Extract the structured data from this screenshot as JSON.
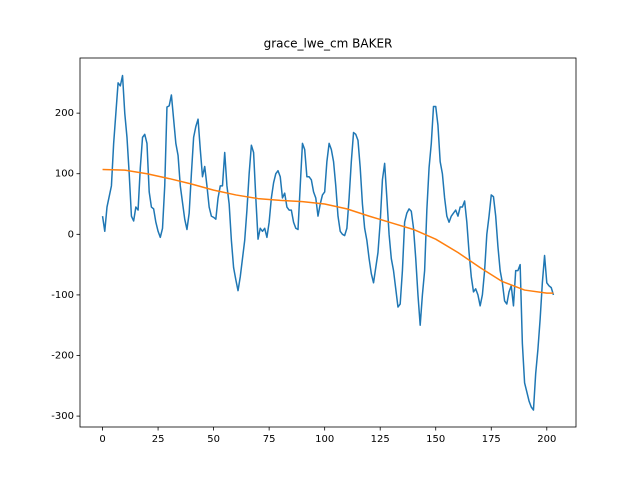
{
  "chart_data": {
    "type": "line",
    "title": "grace_lwe_cm BAKER",
    "xlim": [
      -10.15,
      213.15
    ],
    "ylim": [
      -318,
      291
    ],
    "xticks": [
      0,
      25,
      50,
      75,
      100,
      125,
      150,
      175,
      200
    ],
    "yticks": [
      -300,
      -200,
      -100,
      0,
      100,
      200
    ],
    "series": [
      {
        "color": "#1f77b4",
        "x": [
          0,
          1,
          2,
          4,
          5,
          7,
          8,
          9,
          10,
          11,
          12,
          13,
          14,
          15,
          16,
          17,
          18,
          19,
          20,
          21,
          22,
          23,
          24,
          25,
          26,
          27,
          28,
          29,
          30,
          31,
          32,
          33,
          34,
          35,
          37,
          38,
          39,
          40,
          41,
          42,
          43,
          44,
          45,
          46,
          47,
          48,
          49,
          50,
          51,
          52,
          53,
          54,
          55,
          56,
          57,
          58,
          59,
          60,
          61,
          62,
          64,
          65,
          66,
          67,
          68,
          69,
          70,
          71,
          72,
          73,
          74,
          75,
          76,
          77,
          78,
          79,
          80,
          81,
          82,
          83,
          84,
          85,
          86,
          87,
          88,
          89,
          90,
          91,
          92,
          93,
          94,
          95,
          96,
          97,
          98,
          99,
          100,
          101,
          102,
          103,
          104,
          105,
          106,
          107,
          108,
          109,
          110,
          111,
          112,
          113,
          114,
          115,
          116,
          117,
          118,
          119,
          120,
          121,
          122,
          123,
          124,
          125,
          126,
          127,
          128,
          129,
          130,
          131,
          132,
          133,
          134,
          135,
          136,
          137,
          138,
          139,
          140,
          141,
          142,
          143,
          144,
          145,
          146,
          147,
          148,
          149,
          150,
          151,
          152,
          153,
          154,
          155,
          156,
          157,
          158,
          159,
          160,
          161,
          162,
          163,
          164,
          165,
          166,
          167,
          168,
          169,
          170,
          171,
          172,
          173,
          174,
          175,
          176,
          177,
          178,
          179,
          180,
          181,
          182,
          183,
          184,
          185,
          186,
          187,
          188,
          189,
          190,
          191,
          192,
          193,
          194,
          195,
          196,
          197,
          198,
          199,
          200,
          201,
          202,
          203
        ],
        "values": [
          30,
          5,
          45,
          80,
          150,
          250,
          245,
          262,
          200,
          160,
          100,
          30,
          22,
          45,
          40,
          110,
          160,
          165,
          150,
          70,
          45,
          42,
          20,
          5,
          -5,
          10,
          80,
          210,
          212,
          230,
          190,
          150,
          130,
          80,
          25,
          8,
          35,
          100,
          160,
          178,
          190,
          140,
          95,
          112,
          80,
          45,
          30,
          28,
          25,
          60,
          80,
          80,
          135,
          80,
          50,
          -10,
          -55,
          -75,
          -93,
          -70,
          -10,
          40,
          100,
          147,
          135,
          60,
          -8,
          10,
          5,
          10,
          -5,
          20,
          60,
          85,
          100,
          105,
          95,
          60,
          68,
          45,
          40,
          40,
          20,
          10,
          8,
          80,
          150,
          140,
          95,
          95,
          90,
          70,
          60,
          30,
          50,
          65,
          70,
          120,
          150,
          140,
          120,
          80,
          30,
          5,
          0,
          -2,
          10,
          60,
          120,
          168,
          165,
          155,
          110,
          50,
          10,
          -10,
          -40,
          -65,
          -80,
          -55,
          -30,
          20,
          90,
          117,
          60,
          0,
          -40,
          -60,
          -90,
          -120,
          -115,
          -60,
          20,
          35,
          42,
          38,
          10,
          -40,
          -100,
          -150,
          -100,
          -60,
          40,
          110,
          150,
          211,
          211,
          180,
          120,
          100,
          60,
          30,
          20,
          30,
          35,
          40,
          30,
          45,
          45,
          55,
          20,
          -30,
          -70,
          -95,
          -90,
          -100,
          -118,
          -100,
          -60,
          0,
          30,
          65,
          62,
          30,
          -20,
          -60,
          -80,
          -110,
          -115,
          -95,
          -85,
          -118,
          -60,
          -60,
          -50,
          -180,
          -245,
          -260,
          -275,
          -285,
          -290,
          -230,
          -190,
          -140,
          -80,
          -35,
          -80,
          -85,
          -88,
          -100
        ]
      },
      {
        "color": "#ff7f0e",
        "x": [
          0,
          10,
          20,
          30,
          40,
          50,
          60,
          70,
          80,
          90,
          100,
          110,
          120,
          130,
          140,
          150,
          160,
          170,
          180,
          190,
          200,
          203
        ],
        "values": [
          107,
          106,
          100,
          92,
          83,
          73,
          65,
          59,
          56,
          54,
          50,
          42,
          30,
          19,
          8,
          -8,
          -30,
          -55,
          -78,
          -92,
          -97,
          -97
        ]
      }
    ]
  }
}
